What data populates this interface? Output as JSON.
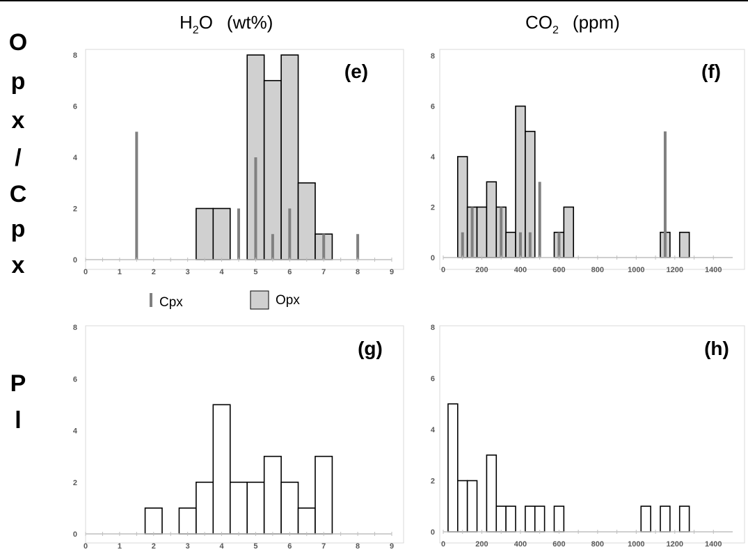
{
  "column_titles": {
    "h2o": {
      "base": "H",
      "sub": "2",
      "rest": "O",
      "unit": "(wt%)"
    },
    "co2": {
      "base": "CO",
      "sub": "2",
      "unit": "(ppm)"
    }
  },
  "row_labels": {
    "px": [
      "O",
      "p",
      "x",
      "/",
      "C",
      "p",
      "x"
    ],
    "pl": [
      "P",
      "l"
    ]
  },
  "legend": {
    "cpx": "Cpx",
    "opx": "Opx"
  },
  "colors": {
    "cpx": "#808080",
    "opx": "#d0d0d0",
    "pl": "#ffffff",
    "axis": "#bfbfbf",
    "outline": "#000000"
  },
  "chart_data": [
    {
      "id": "e",
      "label": "(e)",
      "type": "bar",
      "xlim": [
        0,
        9
      ],
      "xticks": [
        0,
        1,
        2,
        3,
        4,
        5,
        6,
        7,
        8,
        9
      ],
      "ylim": [
        0,
        8
      ],
      "yticks": [
        0,
        2,
        4,
        6,
        8
      ],
      "series": [
        {
          "name": "Opx",
          "kind": "histogram",
          "bins": [
            [
              3.25,
              3.75
            ],
            [
              3.75,
              4.25
            ],
            [
              4.75,
              5.25
            ],
            [
              5.25,
              5.75
            ],
            [
              5.75,
              6.25
            ],
            [
              6.25,
              6.75
            ],
            [
              6.75,
              7.25
            ]
          ],
          "values": [
            2,
            2,
            8,
            7,
            8,
            3,
            1
          ]
        },
        {
          "name": "Cpx",
          "kind": "spike",
          "x": [
            1.5,
            4.5,
            5.0,
            5.5,
            6.0,
            7.0,
            8.0
          ],
          "values": [
            5,
            2,
            4,
            1,
            2,
            1,
            1
          ]
        }
      ]
    },
    {
      "id": "f",
      "label": "(f)",
      "type": "bar",
      "xlim": [
        0,
        1500
      ],
      "xticks": [
        0,
        200,
        400,
        600,
        800,
        1000,
        1200,
        1400
      ],
      "ylim": [
        0,
        8
      ],
      "yticks": [
        0,
        2,
        4,
        6,
        8
      ],
      "series": [
        {
          "name": "Opx",
          "kind": "histogram",
          "bins": [
            [
              75,
              125
            ],
            [
              125,
              175
            ],
            [
              175,
              225
            ],
            [
              225,
              275
            ],
            [
              275,
              325
            ],
            [
              325,
              375
            ],
            [
              375,
              425
            ],
            [
              425,
              475
            ],
            [
              575,
              625
            ],
            [
              625,
              675
            ],
            [
              1125,
              1175
            ],
            [
              1225,
              1275
            ]
          ],
          "values": [
            4,
            2,
            2,
            3,
            2,
            1,
            6,
            5,
            1,
            2,
            1,
            1
          ]
        },
        {
          "name": "Cpx",
          "kind": "spike",
          "x": [
            100,
            150,
            300,
            400,
            450,
            500,
            600,
            1150
          ],
          "values": [
            1,
            2,
            2,
            1,
            1,
            3,
            1,
            5
          ]
        }
      ]
    },
    {
      "id": "g",
      "label": "(g)",
      "type": "bar",
      "xlim": [
        0,
        9
      ],
      "xticks": [
        0,
        1,
        2,
        3,
        4,
        5,
        6,
        7,
        8,
        9
      ],
      "ylim": [
        0,
        8
      ],
      "yticks": [
        0,
        2,
        4,
        6,
        8
      ],
      "series": [
        {
          "name": "Pl",
          "kind": "histogram",
          "bins": [
            [
              1.75,
              2.25
            ],
            [
              2.75,
              3.25
            ],
            [
              3.25,
              3.75
            ],
            [
              3.75,
              4.25
            ],
            [
              4.25,
              4.75
            ],
            [
              4.75,
              5.25
            ],
            [
              5.25,
              5.75
            ],
            [
              5.75,
              6.25
            ],
            [
              6.25,
              6.75
            ],
            [
              6.75,
              7.25
            ]
          ],
          "values": [
            1,
            1,
            2,
            5,
            2,
            2,
            3,
            2,
            1,
            3
          ]
        }
      ]
    },
    {
      "id": "h",
      "label": "(h)",
      "type": "bar",
      "xlim": [
        0,
        1500
      ],
      "xticks": [
        0,
        200,
        400,
        600,
        800,
        1000,
        1200,
        1400
      ],
      "ylim": [
        0,
        8
      ],
      "yticks": [
        0,
        2,
        4,
        6,
        8
      ],
      "series": [
        {
          "name": "Pl",
          "kind": "histogram",
          "bins": [
            [
              25,
              75
            ],
            [
              75,
              125
            ],
            [
              125,
              175
            ],
            [
              225,
              275
            ],
            [
              275,
              325
            ],
            [
              325,
              375
            ],
            [
              425,
              475
            ],
            [
              475,
              525
            ],
            [
              575,
              625
            ],
            [
              1025,
              1075
            ],
            [
              1125,
              1175
            ],
            [
              1225,
              1275
            ]
          ],
          "values": [
            5,
            2,
            2,
            3,
            1,
            1,
            1,
            1,
            1,
            1,
            1,
            1
          ]
        }
      ]
    }
  ]
}
